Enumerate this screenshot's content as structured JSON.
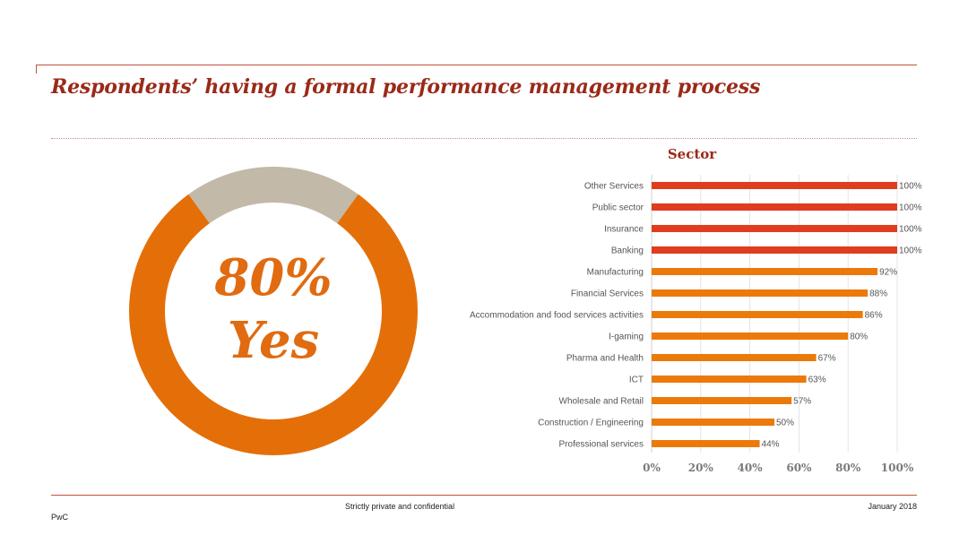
{
  "title": "Respondents’ having a formal performance management process",
  "footer": {
    "confidential": "Strictly private and confidential",
    "date": "January 2018",
    "brand": "PwC"
  },
  "colors": {
    "title": "#9a2a18",
    "bar_top": "#e03c1f",
    "bar": "#eb7a0a",
    "donut_yes": "#e46f08",
    "donut_no": "#c2b9a8"
  },
  "chart_data": [
    {
      "type": "pie",
      "style": "donut",
      "categories": [
        "Yes",
        "No"
      ],
      "values": [
        80,
        20
      ],
      "center_label": {
        "percent": "80%",
        "answer": "Yes"
      }
    },
    {
      "type": "bar",
      "orientation": "horizontal",
      "title": "Sector",
      "categories": [
        "Other Services",
        "Public sector",
        "Insurance",
        "Banking",
        "Manufacturing",
        "Financial Services",
        "Accommodation and food services activities",
        "I-gaming",
        "Pharma and Health",
        "ICT",
        "Wholesale and Retail",
        "Construction / Engineering",
        "Professional services"
      ],
      "values": [
        100,
        100,
        100,
        100,
        92,
        88,
        86,
        80,
        67,
        63,
        57,
        50,
        44
      ],
      "data_labels": [
        "100%",
        "100%",
        "100%",
        "100%",
        "92%",
        "88%",
        "86%",
        "80%",
        "67%",
        "63%",
        "57%",
        "50%",
        "44%"
      ],
      "highlight_count": 4,
      "xlim": [
        0,
        100
      ],
      "xticks": [
        0,
        20,
        40,
        60,
        80,
        100
      ],
      "xtick_labels": [
        "0%",
        "20%",
        "40%",
        "60%",
        "80%",
        "100%"
      ],
      "grid": true
    }
  ]
}
